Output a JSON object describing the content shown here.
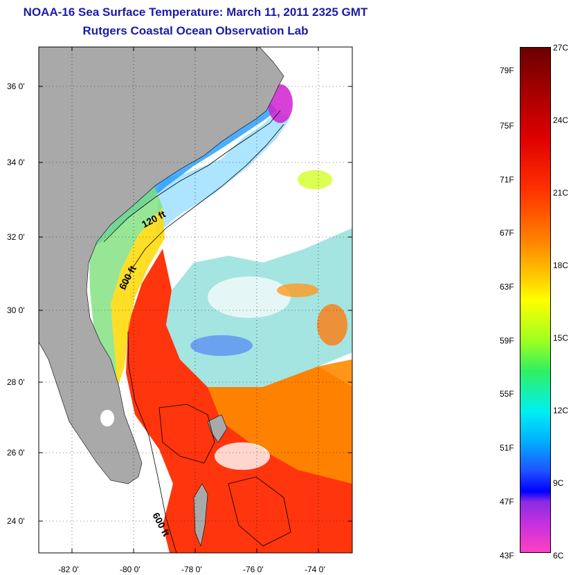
{
  "title": {
    "line1": "NOAA-16 Sea Surface Temperature:  March 11, 2011 2325 GMT",
    "line2": "Rutgers Coastal Ocean Observation Lab"
  },
  "map": {
    "lat_labels": [
      "36 0'",
      "34 0'",
      "32 0'",
      "30 0'",
      "28 0'",
      "26 0'",
      "24 0'"
    ],
    "lon_labels": [
      "-82 0'",
      "-80 0'",
      "-78 0'",
      "-76 0'",
      "-74 0'"
    ],
    "lat_range": [
      23,
      37
    ],
    "lon_range": [
      -83,
      -73
    ],
    "contour_labels": [
      "120 ft",
      "600 ft",
      "600 ft"
    ],
    "land_color": "#a9a9a9",
    "cloud_color": "#ffffff"
  },
  "colorbar": {
    "fahrenheit_labels": [
      "79F",
      "75F",
      "71F",
      "67F",
      "63F",
      "59F",
      "55F",
      "51F",
      "47F",
      "43F"
    ],
    "celsius_labels": [
      "27C",
      "24C",
      "21C",
      "18C",
      "15C",
      "12C",
      "9C",
      "6C"
    ],
    "range_c": [
      6,
      27
    ]
  }
}
